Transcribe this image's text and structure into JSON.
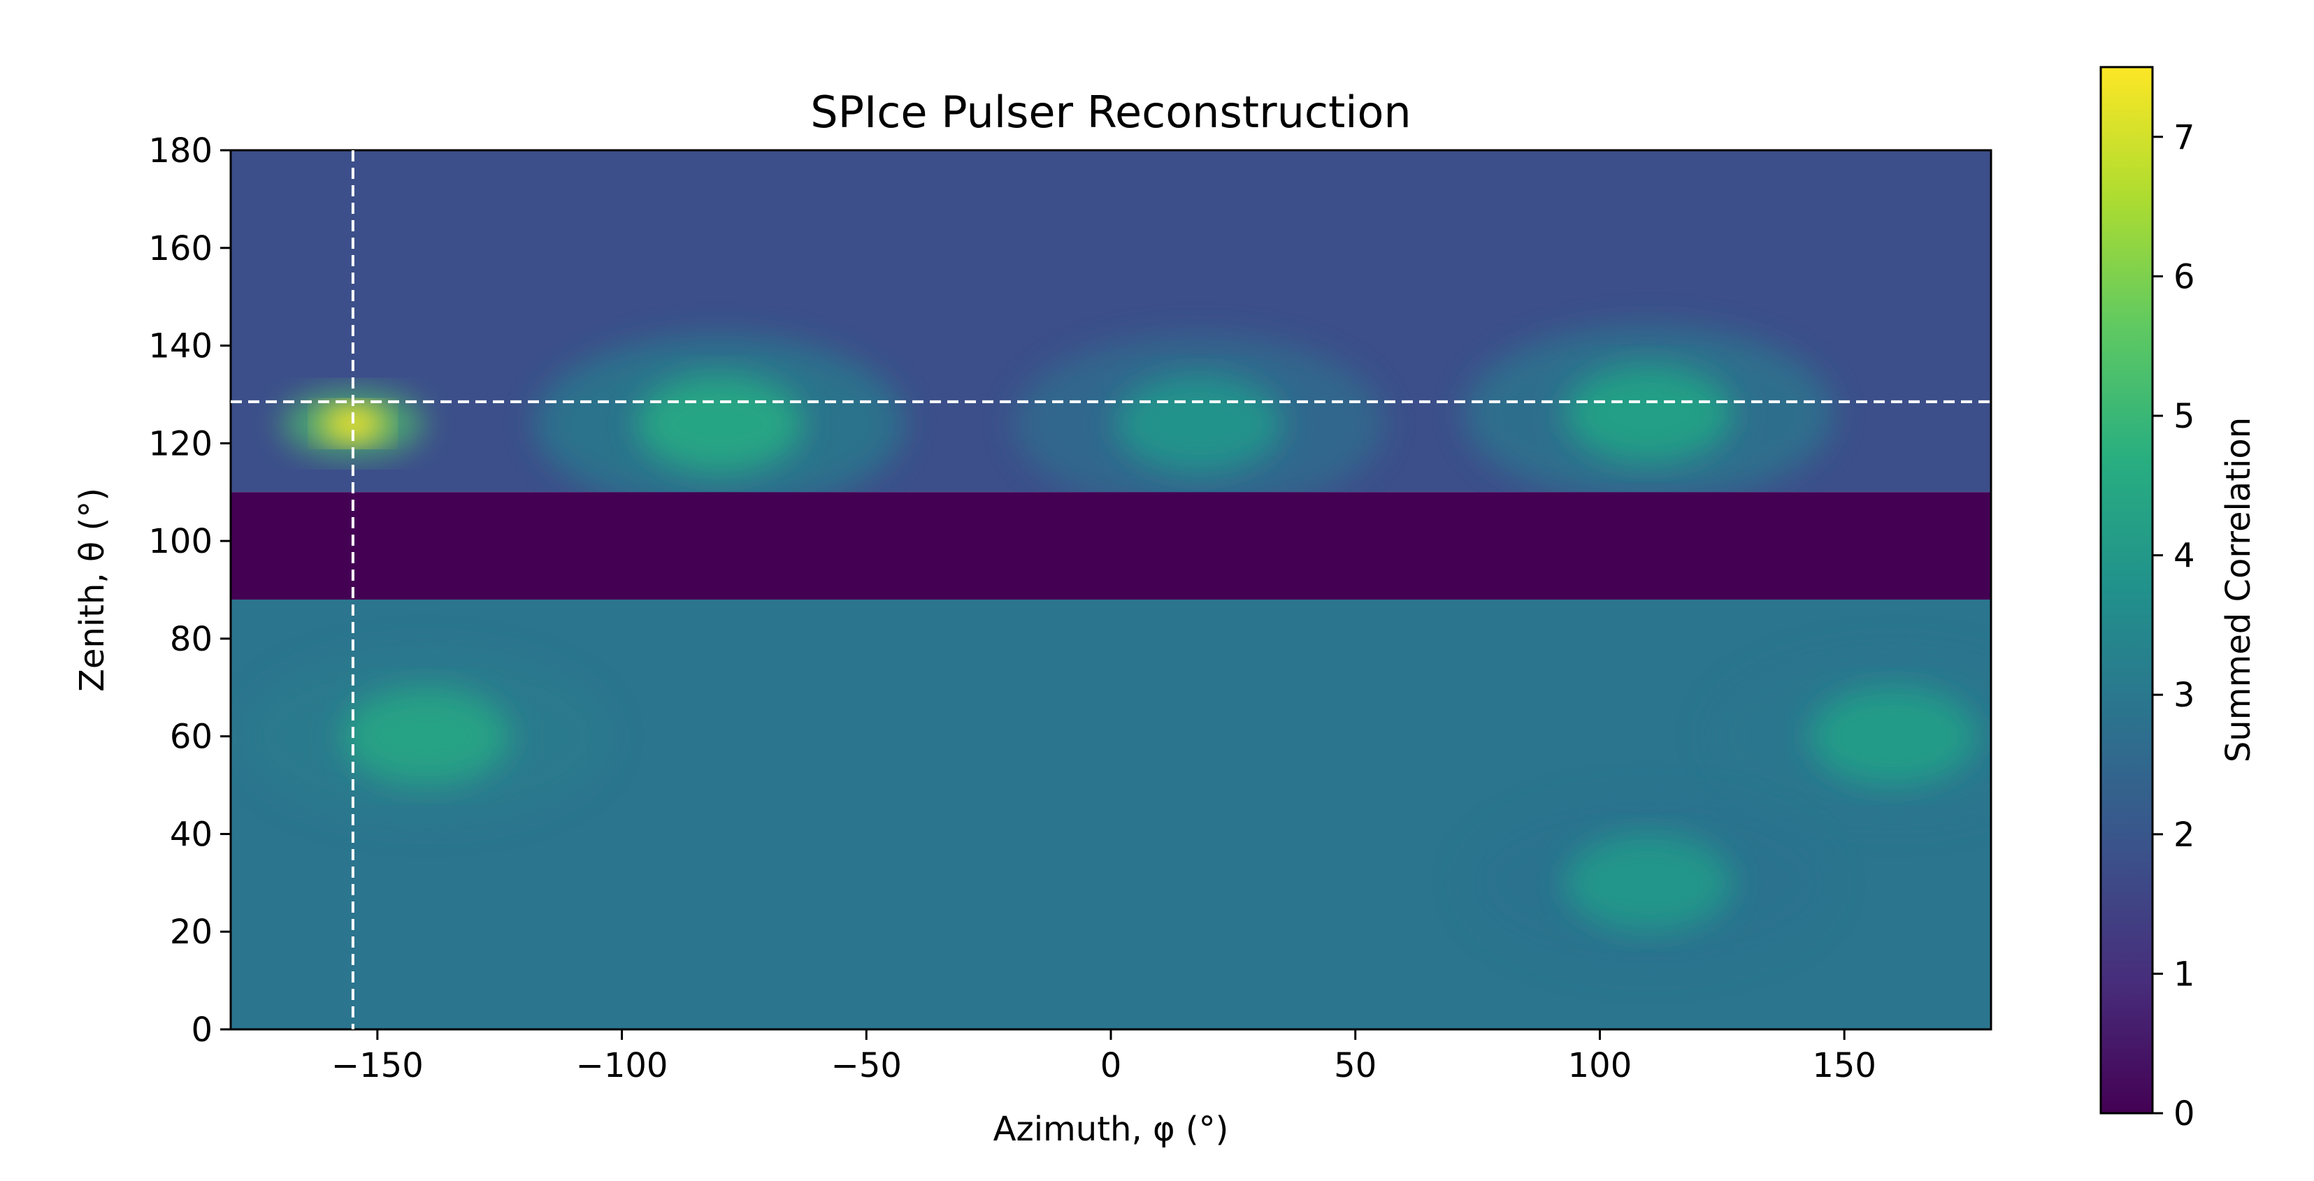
{
  "chart_data": {
    "type": "heatmap",
    "title": "SPIce Pulser  Reconstruction",
    "xlabel": "Azimuth, φ (°)",
    "ylabel": "Zenith, θ (°)",
    "xlim": [
      -180,
      180
    ],
    "ylim": [
      0,
      180
    ],
    "xticks": [
      -150,
      -100,
      -50,
      0,
      50,
      100,
      150
    ],
    "xtick_labels": [
      "−150",
      "−100",
      "−50",
      "0",
      "50",
      "100",
      "150"
    ],
    "yticks": [
      0,
      20,
      40,
      60,
      80,
      100,
      120,
      140,
      160,
      180
    ],
    "ytick_labels": [
      "0",
      "20",
      "40",
      "60",
      "80",
      "100",
      "120",
      "140",
      "160",
      "180"
    ],
    "colormap": "viridis",
    "colorbar": {
      "label": "Summed Correlation",
      "min": 0,
      "max": 7.5,
      "ticks": [
        0,
        1,
        2,
        3,
        4,
        5,
        6,
        7
      ],
      "tick_labels": [
        "0",
        "1",
        "2",
        "3",
        "4",
        "5",
        "6",
        "7"
      ]
    },
    "masked_band": {
      "zenith_range": [
        88,
        110
      ],
      "value": 0
    },
    "peak": {
      "azimuth": -155,
      "zenith": 124,
      "value": 7.5
    },
    "reference_lines": {
      "azimuth": -155,
      "zenith": 128.5
    },
    "hotspots": [
      {
        "azimuth": -155,
        "zenith": 124,
        "value": 7.5
      },
      {
        "azimuth": -80,
        "zenith": 124,
        "value": 4.4
      },
      {
        "azimuth": 18,
        "zenith": 124,
        "value": 3.8
      },
      {
        "azimuth": 110,
        "zenith": 126,
        "value": 4.2
      },
      {
        "azimuth": -140,
        "zenith": 60,
        "value": 4.3
      },
      {
        "azimuth": 160,
        "zenith": 60,
        "value": 4.1
      },
      {
        "azimuth": 110,
        "zenith": 30,
        "value": 3.9
      }
    ],
    "region_levels": [
      {
        "zenith_range": [
          110,
          180
        ],
        "typical_value": 1.8
      },
      {
        "zenith_range": [
          0,
          88
        ],
        "typical_value": 2.9
      }
    ]
  }
}
